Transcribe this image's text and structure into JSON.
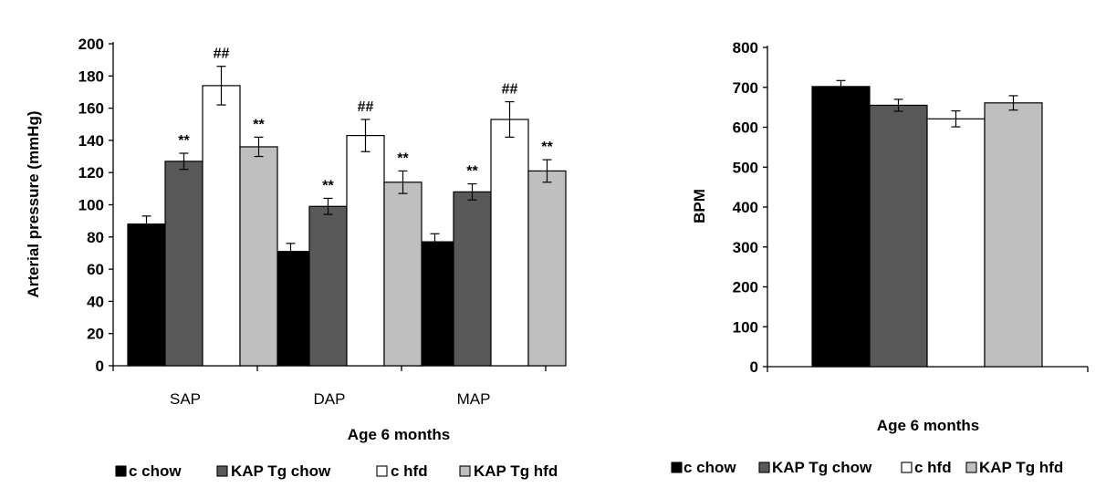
{
  "chart_data": [
    {
      "type": "bar",
      "categories": [
        "SAP",
        "DAP",
        "MAP"
      ],
      "xlabel": "Age 6 months",
      "ylabel": "Arterial pressure (mmHg)",
      "ylim": [
        0,
        200
      ],
      "yticks": [
        0,
        20,
        40,
        60,
        80,
        100,
        120,
        140,
        160,
        180,
        200
      ],
      "grid": false,
      "legend_position": "bottom",
      "series": [
        {
          "name": "c chow",
          "color": "#000000",
          "values": [
            88,
            71,
            77
          ],
          "errors": [
            5,
            5,
            5
          ],
          "annotations": [
            "",
            "",
            ""
          ]
        },
        {
          "name": "KAP Tg chow",
          "color": "#595959",
          "values": [
            127,
            99,
            108
          ],
          "errors": [
            5,
            5,
            5
          ],
          "annotations": [
            "**",
            "**",
            "**"
          ]
        },
        {
          "name": "c hfd",
          "color": "#ffffff",
          "values": [
            174,
            143,
            153
          ],
          "errors": [
            12,
            10,
            11
          ],
          "annotations": [
            "##",
            "##",
            "##"
          ]
        },
        {
          "name": "KAP Tg hfd",
          "color": "#bfbfbf",
          "values": [
            136,
            114,
            121
          ],
          "errors": [
            6,
            7,
            7
          ],
          "annotations": [
            "**",
            "**",
            "**"
          ]
        }
      ]
    },
    {
      "type": "bar",
      "categories": [
        ""
      ],
      "xlabel": "Age 6 months",
      "ylabel": "BPM",
      "ylim": [
        0,
        800
      ],
      "yticks": [
        0,
        100,
        200,
        300,
        400,
        500,
        600,
        700,
        800
      ],
      "grid": false,
      "legend_position": "bottom",
      "series": [
        {
          "name": "c chow",
          "color": "#000000",
          "values": [
            702
          ],
          "errors": [
            15
          ]
        },
        {
          "name": "KAP Tg chow",
          "color": "#595959",
          "values": [
            655
          ],
          "errors": [
            15
          ]
        },
        {
          "name": "c hfd",
          "color": "#ffffff",
          "values": [
            621
          ],
          "errors": [
            20
          ]
        },
        {
          "name": "KAP Tg hfd",
          "color": "#bfbfbf",
          "values": [
            661
          ],
          "errors": [
            18
          ]
        }
      ]
    }
  ]
}
